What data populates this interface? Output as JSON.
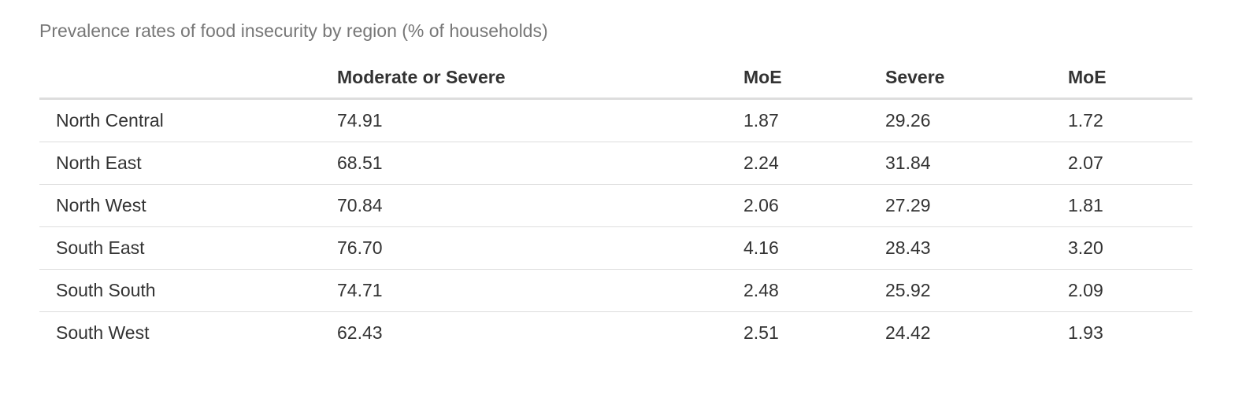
{
  "caption": "Prevalence rates of food insecurity by region (% of households)",
  "table": {
    "columns": [
      "",
      "Moderate or Severe",
      "MoE",
      "Severe",
      "MoE"
    ],
    "rows": [
      [
        "North Central",
        "74.91",
        "1.87",
        "29.26",
        "1.72"
      ],
      [
        "North East",
        "68.51",
        "2.24",
        "31.84",
        "2.07"
      ],
      [
        "North West",
        "70.84",
        "2.06",
        "27.29",
        "1.81"
      ],
      [
        "South East",
        "76.70",
        "4.16",
        "28.43",
        "3.20"
      ],
      [
        "South South",
        "74.71",
        "2.48",
        "25.92",
        "2.09"
      ],
      [
        "South West",
        "62.43",
        "2.51",
        "24.42",
        "1.93"
      ]
    ]
  }
}
